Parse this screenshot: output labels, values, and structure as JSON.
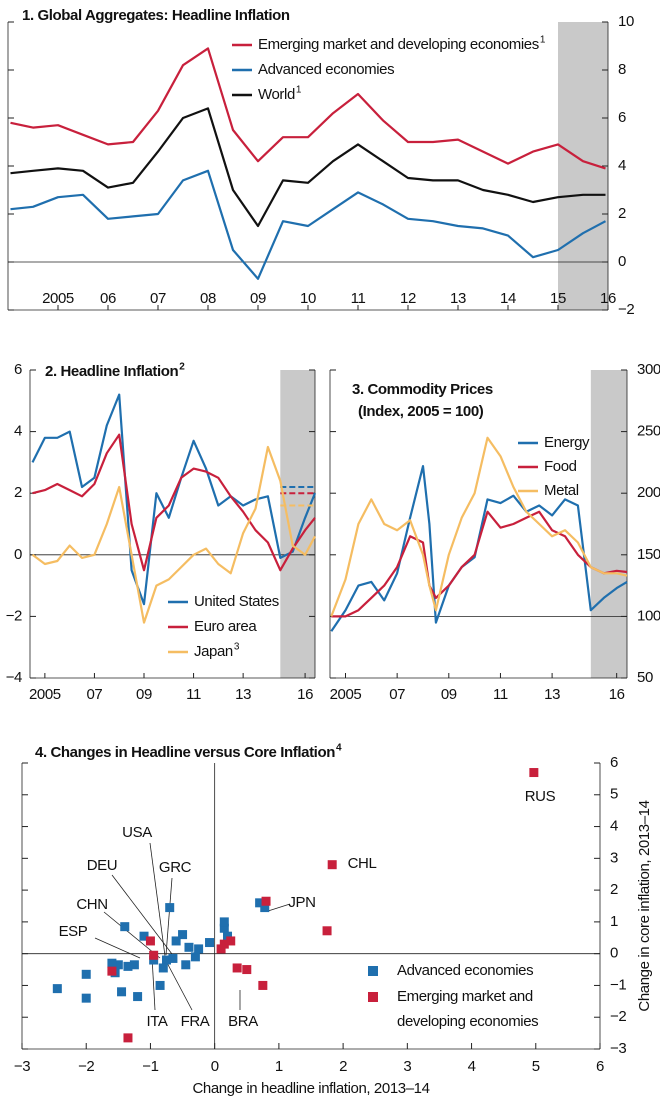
{
  "chart_data": [
    {
      "type": "line",
      "title": "1. Global Aggregates: Headline Inflation",
      "x": [
        2004.55,
        2005,
        2005.5,
        2006,
        2006.5,
        2007,
        2007.5,
        2008,
        2008.5,
        2009,
        2009.5,
        2010,
        2010.5,
        2011,
        2011.5,
        2012,
        2012.5,
        2013,
        2013.5,
        2014,
        2014.5,
        2015,
        2015.5,
        2016,
        2016.45
      ],
      "series": [
        {
          "name": "Emerging market and developing economies",
          "note": "1",
          "color": "#c8203c",
          "values": [
            5.8,
            5.6,
            5.7,
            5.3,
            4.9,
            5.0,
            6.3,
            8.2,
            8.9,
            5.5,
            4.2,
            5.2,
            5.2,
            6.2,
            7.0,
            5.9,
            5.0,
            5.0,
            5.1,
            4.6,
            4.1,
            4.6,
            4.9,
            4.2,
            3.9
          ]
        },
        {
          "name": "Advanced economies",
          "color": "#1f6fae",
          "values": [
            2.2,
            2.3,
            2.7,
            2.8,
            1.8,
            1.9,
            2.0,
            3.4,
            3.8,
            0.5,
            -0.7,
            1.7,
            1.5,
            2.2,
            2.9,
            2.4,
            1.8,
            1.7,
            1.5,
            1.4,
            1.1,
            0.2,
            0.5,
            1.2,
            1.7
          ]
        },
        {
          "name": "World",
          "note": "1",
          "color": "#111111",
          "values": [
            3.7,
            3.8,
            3.9,
            3.8,
            3.1,
            3.3,
            4.6,
            6.0,
            6.4,
            3.0,
            1.5,
            3.4,
            3.3,
            4.2,
            4.9,
            4.2,
            3.5,
            3.4,
            3.4,
            3.0,
            2.8,
            2.5,
            2.7,
            2.8,
            2.8
          ]
        }
      ],
      "xlim": [
        2004.5,
        2016.5
      ],
      "xticks": [
        {
          "value": 2005.5,
          "label": "2005"
        },
        {
          "value": 2006.5,
          "label": "06"
        },
        {
          "value": 2007.5,
          "label": "07"
        },
        {
          "value": 2008.5,
          "label": "08"
        },
        {
          "value": 2009.5,
          "label": "09"
        },
        {
          "value": 2010.5,
          "label": "10"
        },
        {
          "value": 2011.5,
          "label": "11"
        },
        {
          "value": 2012.5,
          "label": "12"
        },
        {
          "value": 2013.5,
          "label": "13"
        },
        {
          "value": 2014.5,
          "label": "14"
        },
        {
          "value": 2015.5,
          "label": "15"
        },
        {
          "value": 2016.5,
          "label": "16"
        }
      ],
      "ylim": [
        -2,
        10
      ],
      "yticks": [
        {
          "value": -2,
          "label": "−2"
        },
        0,
        2,
        4,
        6,
        8,
        10
      ],
      "shade": [
        2015.5,
        2016.5
      ],
      "hline": 0,
      "axis_side": "right"
    },
    {
      "type": "line",
      "title": "2. Headline Inflation",
      "title_note": "2",
      "x": [
        2005,
        2005.5,
        2006,
        2006.5,
        2007,
        2007.5,
        2008,
        2008.5,
        2009,
        2009.5,
        2010,
        2010.5,
        2011,
        2011.5,
        2012,
        2012.5,
        2013,
        2013.5,
        2014,
        2014.5,
        2015,
        2015.5,
        2016,
        2016.4
      ],
      "series": [
        {
          "name": "United States",
          "color": "#1f6fae",
          "target": 2.2,
          "values": [
            3.0,
            3.8,
            3.8,
            4.0,
            2.2,
            2.5,
            4.2,
            5.2,
            -0.5,
            -1.6,
            2.0,
            1.2,
            2.5,
            3.7,
            2.8,
            1.6,
            1.9,
            1.6,
            1.8,
            1.9,
            -0.1,
            0.1,
            1.2,
            2.0
          ]
        },
        {
          "name": "Euro area",
          "color": "#c8203c",
          "target": 2.0,
          "values": [
            2.0,
            2.1,
            2.3,
            2.1,
            1.9,
            2.3,
            3.3,
            3.9,
            1.0,
            -0.5,
            1.2,
            1.6,
            2.5,
            2.8,
            2.7,
            2.5,
            1.9,
            1.4,
            0.8,
            0.4,
            -0.5,
            0.2,
            0.8,
            1.2
          ]
        },
        {
          "name": "Japan",
          "note": "3",
          "color": "#f5bd62",
          "target": 1.6,
          "values": [
            0,
            -0.3,
            -0.2,
            0.3,
            -0.1,
            0,
            1.0,
            2.2,
            0,
            -2.2,
            -1.0,
            -0.8,
            -0.4,
            0,
            0.2,
            -0.3,
            -0.6,
            0.7,
            1.5,
            3.5,
            2.4,
            0.3,
            0,
            0.6
          ]
        }
      ],
      "xlim": [
        2004.9,
        2016.4
      ],
      "xticks": [
        {
          "value": 2005.5,
          "label": "2005"
        },
        {
          "value": 2007.5,
          "label": "07"
        },
        {
          "value": 2009.5,
          "label": "09"
        },
        {
          "value": 2011.5,
          "label": "11"
        },
        {
          "value": 2013.5,
          "label": "13"
        },
        {
          "value": 2016,
          "label": "16"
        }
      ],
      "ylim": [
        -4,
        6
      ],
      "yticks": [
        {
          "value": -4,
          "label": "−4"
        },
        {
          "value": -2,
          "label": "−2"
        },
        0,
        2,
        4,
        6
      ],
      "shade": [
        2015,
        2016.4
      ],
      "hline": 0,
      "axis_side": "left"
    },
    {
      "type": "line",
      "title": "3. Commodity Prices",
      "subtitle": "(Index, 2005 = 100)",
      "x": [
        2004.95,
        2005.5,
        2006,
        2006.5,
        2007,
        2007.5,
        2008,
        2008.5,
        2008.75,
        2009,
        2009.5,
        2010,
        2010.5,
        2011,
        2011.5,
        2012,
        2012.5,
        2013,
        2013.5,
        2014,
        2014.5,
        2015,
        2015.5,
        2016,
        2016.4
      ],
      "series": [
        {
          "name": "Energy",
          "color": "#1f6fae",
          "values": [
            88,
            105,
            125,
            128,
            113,
            135,
            180,
            222,
            175,
            95,
            125,
            140,
            148,
            195,
            192,
            198,
            185,
            190,
            182,
            195,
            190,
            105,
            115,
            123,
            128
          ]
        },
        {
          "name": "Food",
          "color": "#c8203c",
          "values": [
            100,
            100,
            105,
            115,
            125,
            140,
            165,
            160,
            125,
            115,
            125,
            140,
            150,
            185,
            172,
            175,
            180,
            185,
            170,
            165,
            150,
            140,
            135,
            137,
            136
          ]
        },
        {
          "name": "Metal",
          "color": "#f5bd62",
          "values": [
            100,
            130,
            175,
            195,
            175,
            170,
            178,
            150,
            125,
            105,
            150,
            180,
            200,
            245,
            230,
            205,
            185,
            175,
            165,
            170,
            160,
            140,
            135,
            135,
            133
          ]
        }
      ],
      "xlim": [
        2004.9,
        2016.4
      ],
      "xticks": [
        {
          "value": 2005.5,
          "label": "2005"
        },
        {
          "value": 2007.5,
          "label": "07"
        },
        {
          "value": 2009.5,
          "label": "09"
        },
        {
          "value": 2011.5,
          "label": "11"
        },
        {
          "value": 2013.5,
          "label": "13"
        },
        {
          "value": 2016,
          "label": "16"
        }
      ],
      "ylim": [
        50,
        300
      ],
      "yticks": [
        50,
        100,
        150,
        200,
        250,
        300
      ],
      "shade": [
        2015,
        2016.4
      ],
      "hline": 100,
      "axis_side": "right"
    },
    {
      "type": "scatter",
      "title": "4. Changes in Headline versus Core Inflation",
      "title_note": "4",
      "x_label": "Change in headline inflation, 2013–14",
      "y_label": "Change in core inflation, 2013–14",
      "series": [
        {
          "name": "Advanced economies",
          "color": "#1f6fae",
          "x": [
            -2.45,
            -2.0,
            -2.0,
            -1.55,
            -1.5,
            -1.45,
            -1.4,
            -1.35,
            -1.25,
            -1.2,
            -1.1,
            -0.95,
            -0.85,
            -0.75,
            -0.8,
            -0.7,
            -0.65,
            -0.6,
            -0.5,
            -0.45,
            -0.4,
            -0.3,
            -0.25,
            -0.08,
            0.15,
            0.15,
            0.2,
            0.7,
            0.78,
            -1.6
          ],
          "y": [
            -1.1,
            -0.65,
            -1.4,
            -0.6,
            -0.35,
            -1.2,
            0.85,
            -0.4,
            -0.35,
            -1.35,
            0.55,
            -0.2,
            -1.0,
            -0.2,
            -0.45,
            1.45,
            -0.15,
            0.4,
            0.6,
            -0.35,
            0.2,
            -0.1,
            0.15,
            0.35,
            0.8,
            1.0,
            0.55,
            1.6,
            1.45,
            -0.3
          ]
        },
        {
          "name": "Emerging market and developing economies",
          "color": "#c8203c",
          "x": [
            4.97,
            1.83,
            0.8,
            1.75,
            0.15,
            0.25,
            0.1,
            0.35,
            0.5,
            0.75,
            -1.6,
            -0.95,
            -1.0,
            -1.35
          ],
          "y": [
            5.7,
            2.8,
            1.65,
            0.72,
            0.3,
            0.4,
            0.15,
            -0.45,
            -0.5,
            -1.0,
            -0.55,
            -0.05,
            0.4,
            -2.65
          ]
        }
      ],
      "annotations": [
        "USA",
        "DEU",
        "GRC",
        "CHN",
        "ESP",
        "ITA",
        "FRA",
        "BRA",
        "RUS",
        "CHL",
        "JPN"
      ],
      "xlim": [
        -3,
        6
      ],
      "xticks": [
        {
          "value": -3,
          "label": "−3"
        },
        {
          "value": -2,
          "label": "−2"
        },
        {
          "value": -1,
          "label": "−1"
        },
        0,
        1,
        2,
        3,
        4,
        5,
        6
      ],
      "ylim": [
        -3,
        6
      ],
      "yticks": [
        {
          "value": -3,
          "label": "−3"
        },
        {
          "value": -2,
          "label": "−2"
        },
        {
          "value": -1,
          "label": "−1"
        },
        0,
        1,
        2,
        3,
        4,
        5,
        6
      ],
      "hline": 0,
      "vline": 0
    }
  ]
}
